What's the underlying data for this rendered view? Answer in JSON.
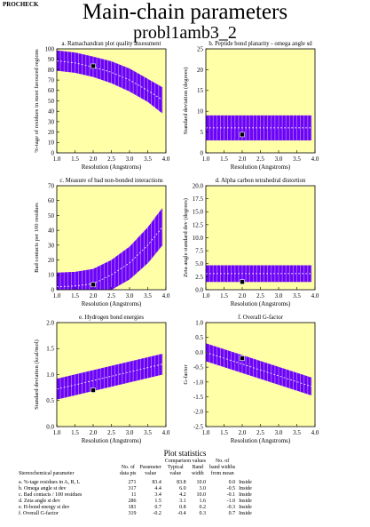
{
  "header": {
    "corner_label": "PROCHECK",
    "title": "Main-chain parameters",
    "subtitle": "probl1amb3_2"
  },
  "colors": {
    "panel_bg": "#ffffa8",
    "band": "#6a00ff",
    "band_dark": "#3d00b0",
    "marker": "#000000"
  },
  "chart_data": [
    {
      "type": "area",
      "title": "a. Ramachandran plot quality assessment",
      "xlabel": "Resolution (Angstroms)",
      "ylabel": "%-tage of residues in most favoured regions",
      "xlim": [
        1.0,
        4.0
      ],
      "ylim": [
        0,
        100
      ],
      "xticks": [
        "1.0",
        "1.5",
        "2.0",
        "2.5",
        "3.0",
        "3.5",
        "4.0"
      ],
      "yticks": [
        "0",
        "10",
        "20",
        "30",
        "40",
        "50",
        "60",
        "70",
        "80",
        "90",
        "100"
      ],
      "band_x": [
        1.0,
        1.5,
        2.0,
        2.5,
        3.0,
        3.5,
        3.9
      ],
      "band_mean": [
        88.5,
        86.5,
        82.5,
        77.5,
        70.0,
        60.0,
        51.0
      ],
      "band_upper": [
        98.5,
        96.5,
        92.5,
        88.0,
        81.0,
        71.0,
        63.0
      ],
      "band_lower": [
        79.0,
        77.0,
        73.0,
        67.0,
        59.0,
        49.0,
        38.0
      ],
      "point": {
        "x": 2.0,
        "y": 83.4
      }
    },
    {
      "type": "area",
      "title": "b. Peptide bond planarity - omega angle sd",
      "xlabel": "Resolution (Angstroms)",
      "ylabel": "Standard deviation (degrees)",
      "xlim": [
        1.0,
        4.0
      ],
      "ylim": [
        0,
        25
      ],
      "xticks": [
        "1.0",
        "1.5",
        "2.0",
        "2.5",
        "3.0",
        "3.5",
        "4.0"
      ],
      "yticks": [
        "0",
        "5",
        "10",
        "15",
        "20",
        "25"
      ],
      "band_x": [
        1.0,
        3.9
      ],
      "band_mean": [
        6.0,
        6.0
      ],
      "band_upper": [
        9.0,
        9.0
      ],
      "band_lower": [
        3.0,
        3.0
      ],
      "point": {
        "x": 2.0,
        "y": 4.4
      }
    },
    {
      "type": "area",
      "title": "c. Measure of bad non-bonded interactions",
      "xlabel": "Resolution (Angstroms)",
      "ylabel": "Bad contacts per 100 residues",
      "xlim": [
        1.0,
        4.0
      ],
      "ylim": [
        0,
        70
      ],
      "xticks": [
        "1.0",
        "1.5",
        "2.0",
        "2.5",
        "3.0",
        "3.5",
        "4.0"
      ],
      "yticks": [
        "0",
        "10",
        "20",
        "30",
        "40",
        "50",
        "60",
        "70"
      ],
      "band_x": [
        1.0,
        1.5,
        2.0,
        2.5,
        3.0,
        3.5,
        3.9
      ],
      "band_mean": [
        2.0,
        2.5,
        4.0,
        10.0,
        18.0,
        30.0,
        42.0
      ],
      "band_upper": [
        11.5,
        12.0,
        14.0,
        20.0,
        29.0,
        42.0,
        55.0
      ],
      "band_lower": [
        0.0,
        0.0,
        0.0,
        0.0,
        7.0,
        18.0,
        30.0
      ],
      "point": {
        "x": 2.0,
        "y": 3.4
      }
    },
    {
      "type": "area",
      "title": "d. Alpha carbon tetrahedral distortion",
      "xlabel": "Resolution (Angstroms)",
      "ylabel": "Zeta angle standard dev (degrees)",
      "xlim": [
        1.0,
        4.0
      ],
      "ylim": [
        0,
        20
      ],
      "xticks": [
        "1.0",
        "1.5",
        "2.0",
        "2.5",
        "3.0",
        "3.5",
        "4.0"
      ],
      "yticks": [
        "0.0",
        "2.5",
        "5.0",
        "7.5",
        "10.0",
        "12.5",
        "15.0",
        "17.5",
        "20.0"
      ],
      "band_x": [
        1.0,
        3.9
      ],
      "band_mean": [
        3.1,
        3.1
      ],
      "band_upper": [
        4.7,
        4.7
      ],
      "band_lower": [
        1.5,
        1.5
      ],
      "point": {
        "x": 2.0,
        "y": 1.5
      }
    },
    {
      "type": "area",
      "title": "e. Hydrogen bond energies",
      "xlabel": "Resolution (Angstroms)",
      "ylabel": "Standard deviation (kcal/mol)",
      "xlim": [
        1.0,
        4.0
      ],
      "ylim": [
        0.0,
        2.0
      ],
      "xticks": [
        "1.0",
        "1.5",
        "2.0",
        "2.5",
        "3.0",
        "3.5",
        "4.0"
      ],
      "yticks": [
        "0.0",
        "0.5",
        "1.0",
        "1.5",
        "2.0"
      ],
      "band_x": [
        1.0,
        3.9
      ],
      "band_mean": [
        0.72,
        1.2
      ],
      "band_upper": [
        0.92,
        1.4
      ],
      "band_lower": [
        0.52,
        1.0
      ],
      "point": {
        "x": 2.0,
        "y": 0.7
      }
    },
    {
      "type": "area",
      "title": "f. Overall G-factor",
      "xlabel": "Resolution (Angstroms)",
      "ylabel": "G-factor",
      "xlim": [
        1.0,
        4.0
      ],
      "ylim": [
        -2.5,
        1.0
      ],
      "xticks": [
        "1.0",
        "1.5",
        "2.0",
        "2.5",
        "3.0",
        "3.5",
        "4.0"
      ],
      "yticks": [
        "-2.5",
        "-2.0",
        "-1.5",
        "-1.0",
        "-0.5",
        "0.0",
        "0.5",
        "1.0"
      ],
      "band_x": [
        1.0,
        3.9
      ],
      "band_mean": [
        0.0,
        -1.15
      ],
      "band_upper": [
        0.3,
        -0.85
      ],
      "band_lower": [
        -0.3,
        -1.45
      ],
      "point": {
        "x": 2.0,
        "y": -0.2
      }
    }
  ],
  "statistics": {
    "title": "Plot statistics",
    "group_header": "Comparison values",
    "columns": {
      "param": "Stereochemical parameter",
      "n_line1": "No. of",
      "n_line2": "data pts",
      "pv_line1": "Parameter",
      "pv_line2": "value",
      "typ_line1": "Typical",
      "typ_line2": "value",
      "bw_line1": "Band",
      "bw_line2": "width",
      "nbw_line0": "No. of",
      "nbw_line1": "band widths",
      "nbw_line2": "from mean"
    },
    "rows": [
      {
        "param": "a. %-tage residues in A, B, L",
        "n": "271",
        "value": "83.4",
        "typical": "83.8",
        "band": "10.0",
        "widths": "0.0",
        "status": "Inside"
      },
      {
        "param": "b. Omega angle st dev",
        "n": "317",
        "value": "4.4",
        "typical": "6.0",
        "band": "3.0",
        "widths": "-0.5",
        "status": "Inside"
      },
      {
        "param": "c. Bad contacts / 100 residues",
        "n": "11",
        "value": "3.4",
        "typical": "4.2",
        "band": "10.0",
        "widths": "-0.1",
        "status": "Inside"
      },
      {
        "param": "d. Zeta angle st dev",
        "n": "286",
        "value": "1.5",
        "typical": "3.1",
        "band": "1.6",
        "widths": "-1.0",
        "status": "Inside"
      },
      {
        "param": "e. H-bond energy st dev",
        "n": "181",
        "value": "0.7",
        "typical": "0.8",
        "band": "0.2",
        "widths": "-0.3",
        "status": "Inside"
      },
      {
        "param": "f. Overall G-factor",
        "n": "319",
        "value": "-0.2",
        "typical": "-0.4",
        "band": "0.3",
        "widths": "0.7",
        "status": "Inside"
      }
    ]
  }
}
